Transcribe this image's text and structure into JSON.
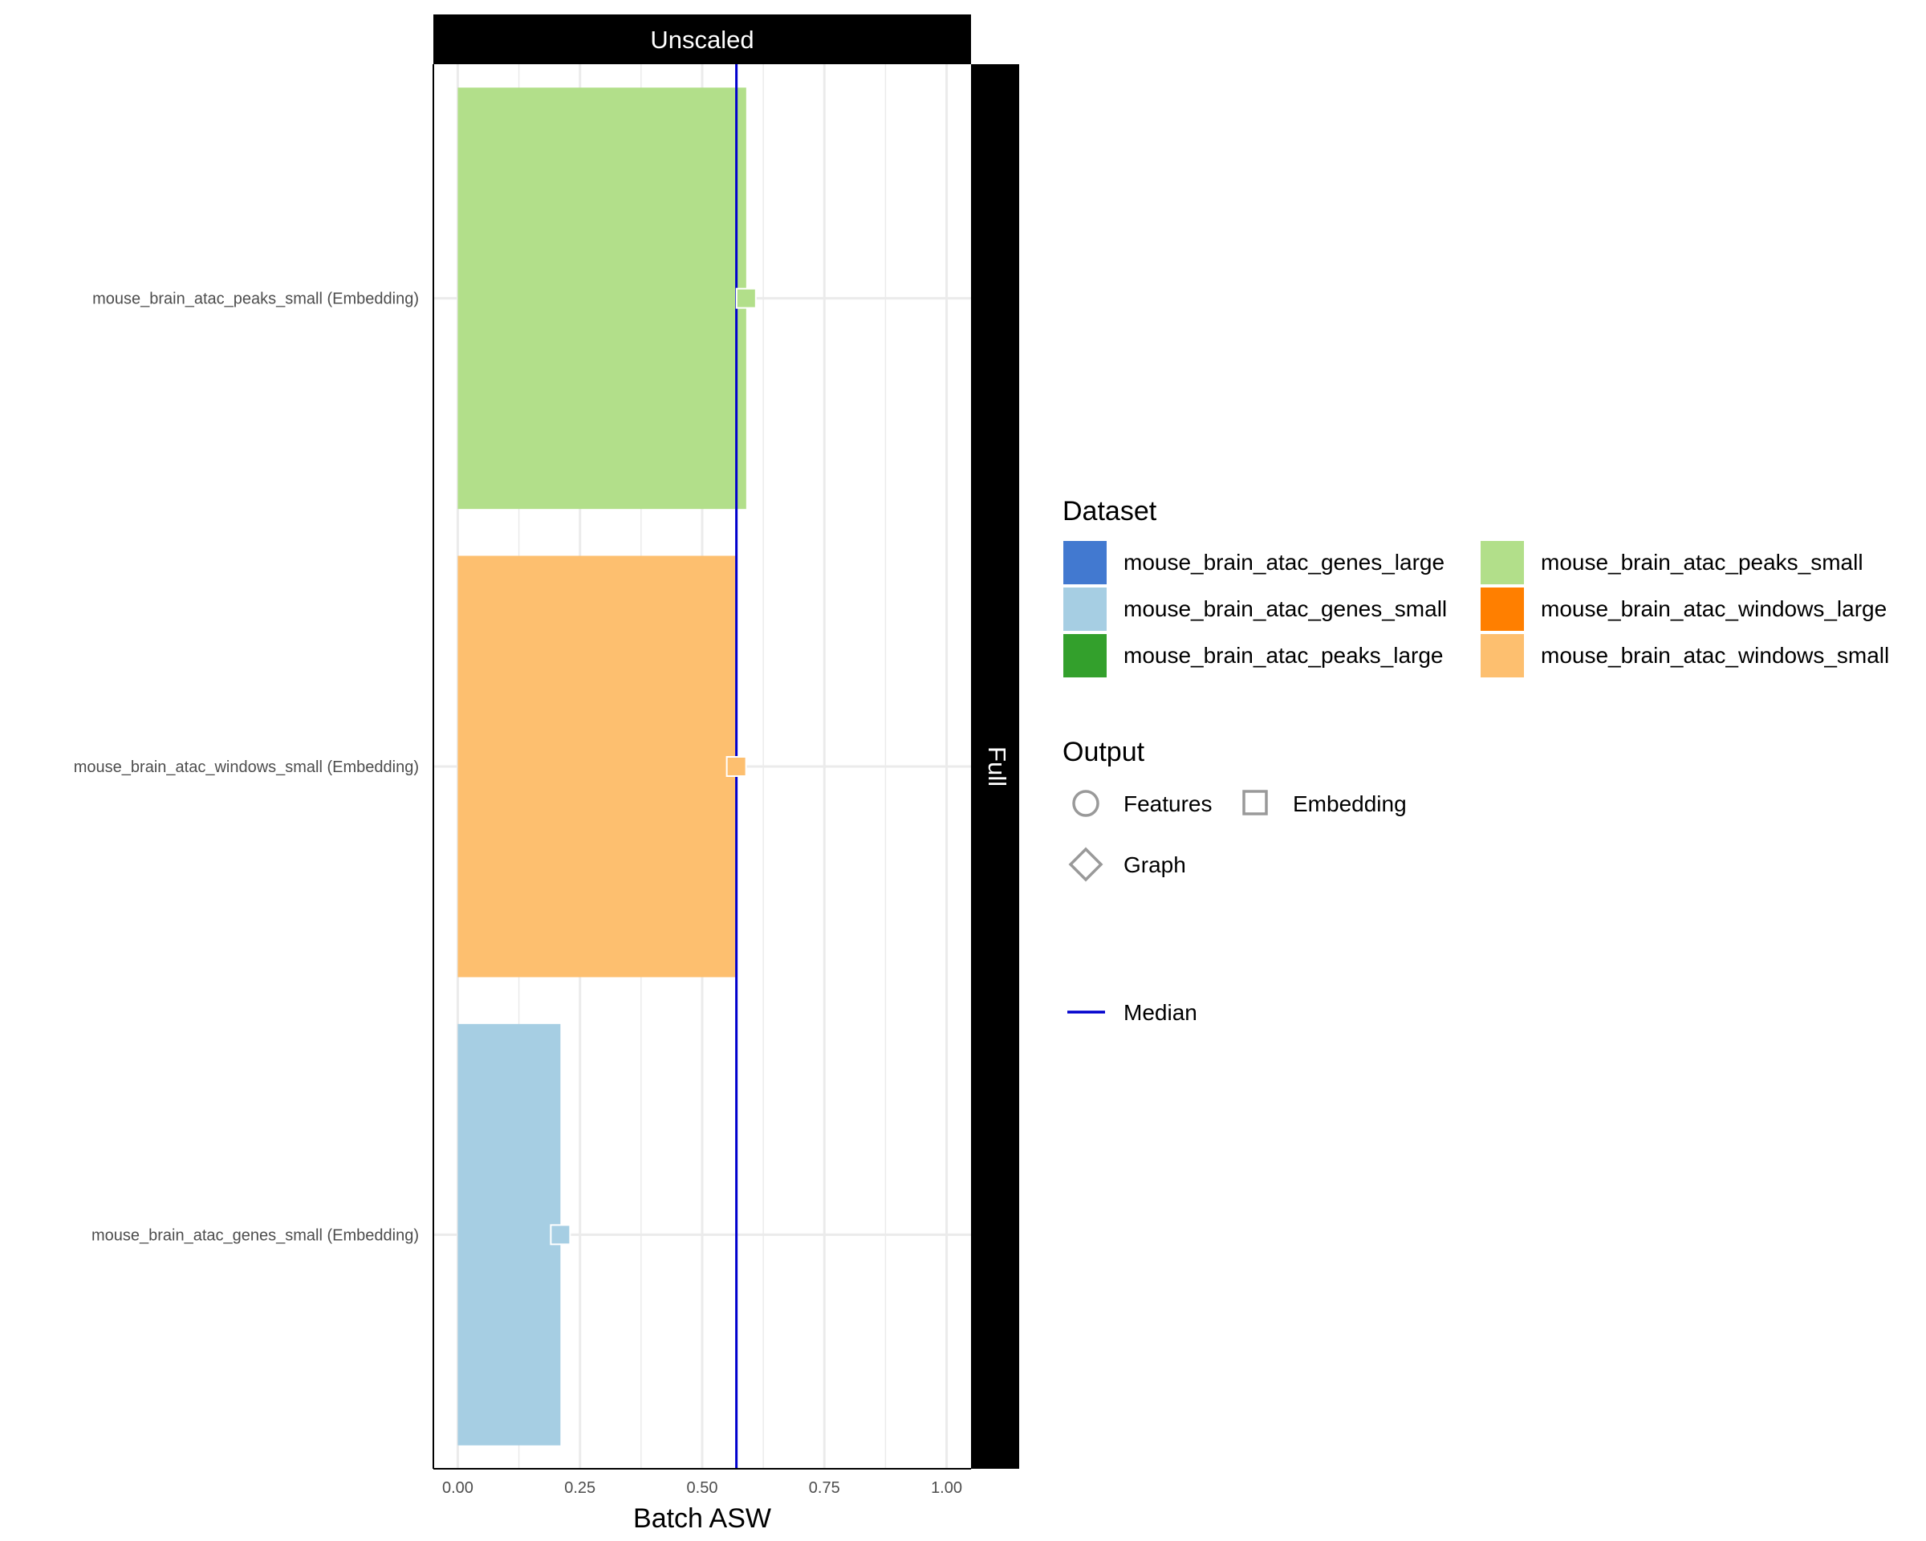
{
  "chart_data": {
    "type": "bar",
    "orientation": "horizontal",
    "facet_column_label": "Unscaled",
    "facet_row_label": "Full",
    "xlabel": "Batch ASW",
    "ylabel": "",
    "xlim": [
      -0.05,
      1.05
    ],
    "x_ticks": [
      0.0,
      0.25,
      0.5,
      0.75,
      1.0
    ],
    "x_tick_labels": [
      "0.00",
      "0.25",
      "0.50",
      "0.75",
      "1.00"
    ],
    "categories": [
      "mouse_brain_atac_peaks_small (Embedding)",
      "mouse_brain_atac_windows_small (Embedding)",
      "mouse_brain_atac_genes_small (Embedding)"
    ],
    "values": [
      0.59,
      0.57,
      0.21
    ],
    "bar_colors": [
      "#b2df8a",
      "#fdbf6f",
      "#a6cee3"
    ],
    "point_shape": "square",
    "median": 0.57,
    "median_color": "#0000cd",
    "grid": true,
    "legend_position": "right"
  },
  "legend": {
    "dataset_title": "Dataset",
    "datasets": [
      {
        "label": "mouse_brain_atac_genes_large",
        "color": "#4279d0"
      },
      {
        "label": "mouse_brain_atac_genes_small",
        "color": "#a6cee3"
      },
      {
        "label": "mouse_brain_atac_peaks_large",
        "color": "#33a02c"
      },
      {
        "label": "mouse_brain_atac_peaks_small",
        "color": "#b2df8a"
      },
      {
        "label": "mouse_brain_atac_windows_large",
        "color": "#ff7f00"
      },
      {
        "label": "mouse_brain_atac_windows_small",
        "color": "#fdbf6f"
      }
    ],
    "output_title": "Output",
    "outputs": [
      {
        "label": "Features",
        "icon": "circle-icon"
      },
      {
        "label": "Embedding",
        "icon": "square-icon"
      },
      {
        "label": "Graph",
        "icon": "diamond-icon"
      }
    ],
    "median_label": "Median"
  }
}
